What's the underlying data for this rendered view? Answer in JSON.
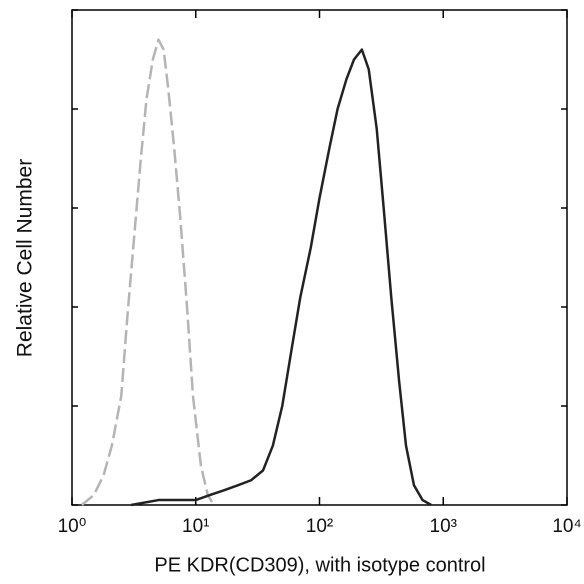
{
  "chart_data": {
    "type": "line",
    "x_label": "PE KDR(CD309), with isotype control",
    "y_label": "Relative Cell Number",
    "xscale": "log",
    "xlim": [
      1,
      10000
    ],
    "xticks": [
      {
        "value": 1,
        "label": "10⁰"
      },
      {
        "value": 10,
        "label": "10¹"
      },
      {
        "value": 100,
        "label": "10²"
      },
      {
        "value": 1000,
        "label": "10³"
      },
      {
        "value": 10000,
        "label": "10⁴"
      }
    ],
    "ylim": [
      0,
      100
    ],
    "yticks": [
      0,
      20,
      40,
      60,
      80,
      100
    ],
    "series": [
      {
        "color": "#b4b4b4",
        "dashed": true,
        "x": [
          1.2,
          1.5,
          1.8,
          2.1,
          2.5,
          2.8,
          3.2,
          3.6,
          4,
          4.5,
          5,
          5.5,
          6,
          6.7,
          7.5,
          8.5,
          9.5,
          11,
          12.5,
          14
        ],
        "values": [
          0,
          2,
          6,
          12,
          22,
          38,
          55,
          70,
          82,
          90,
          94,
          92,
          84,
          72,
          58,
          40,
          22,
          8,
          2,
          0
        ]
      },
      {
        "color": "#222222",
        "dashed": false,
        "x": [
          3,
          5,
          8,
          10,
          13,
          17,
          22,
          28,
          35,
          42,
          50,
          60,
          70,
          85,
          100,
          120,
          140,
          165,
          190,
          220,
          250,
          290,
          330,
          380,
          440,
          500,
          580,
          680,
          800
        ],
        "values": [
          0,
          1,
          1,
          1,
          2,
          3,
          4,
          5,
          7,
          12,
          20,
          32,
          42,
          52,
          62,
          72,
          80,
          86,
          90,
          92,
          88,
          76,
          60,
          42,
          25,
          12,
          4,
          1,
          0
        ]
      }
    ]
  }
}
